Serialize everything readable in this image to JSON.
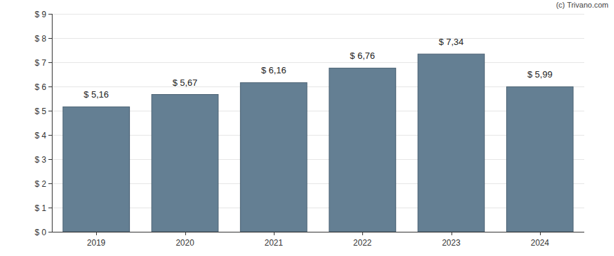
{
  "chart_data": {
    "type": "bar",
    "categories": [
      "2019",
      "2020",
      "2021",
      "2022",
      "2023",
      "2024"
    ],
    "values": [
      5.16,
      5.67,
      6.16,
      6.76,
      7.34,
      5.99
    ],
    "value_labels": [
      "$ 5,16",
      "$ 5,67",
      "$ 6,16",
      "$ 6,76",
      "$ 7,34",
      "$ 5,99"
    ],
    "color": "#647f93",
    "ylim": [
      0,
      9
    ],
    "yticks": [
      {
        "value": 0,
        "label": "$ 0"
      },
      {
        "value": 1,
        "label": "$ 1"
      },
      {
        "value": 2,
        "label": "$ 2"
      },
      {
        "value": 3,
        "label": "$ 3"
      },
      {
        "value": 4,
        "label": "$ 4"
      },
      {
        "value": 5,
        "label": "$ 5"
      },
      {
        "value": 6,
        "label": "$ 6"
      },
      {
        "value": 7,
        "label": "$ 7"
      },
      {
        "value": 8,
        "label": "$ 8"
      },
      {
        "value": 9,
        "label": "$ 9"
      }
    ],
    "grid": true,
    "data_labels": true,
    "annotations": [
      "(c) Trivano.com"
    ]
  }
}
